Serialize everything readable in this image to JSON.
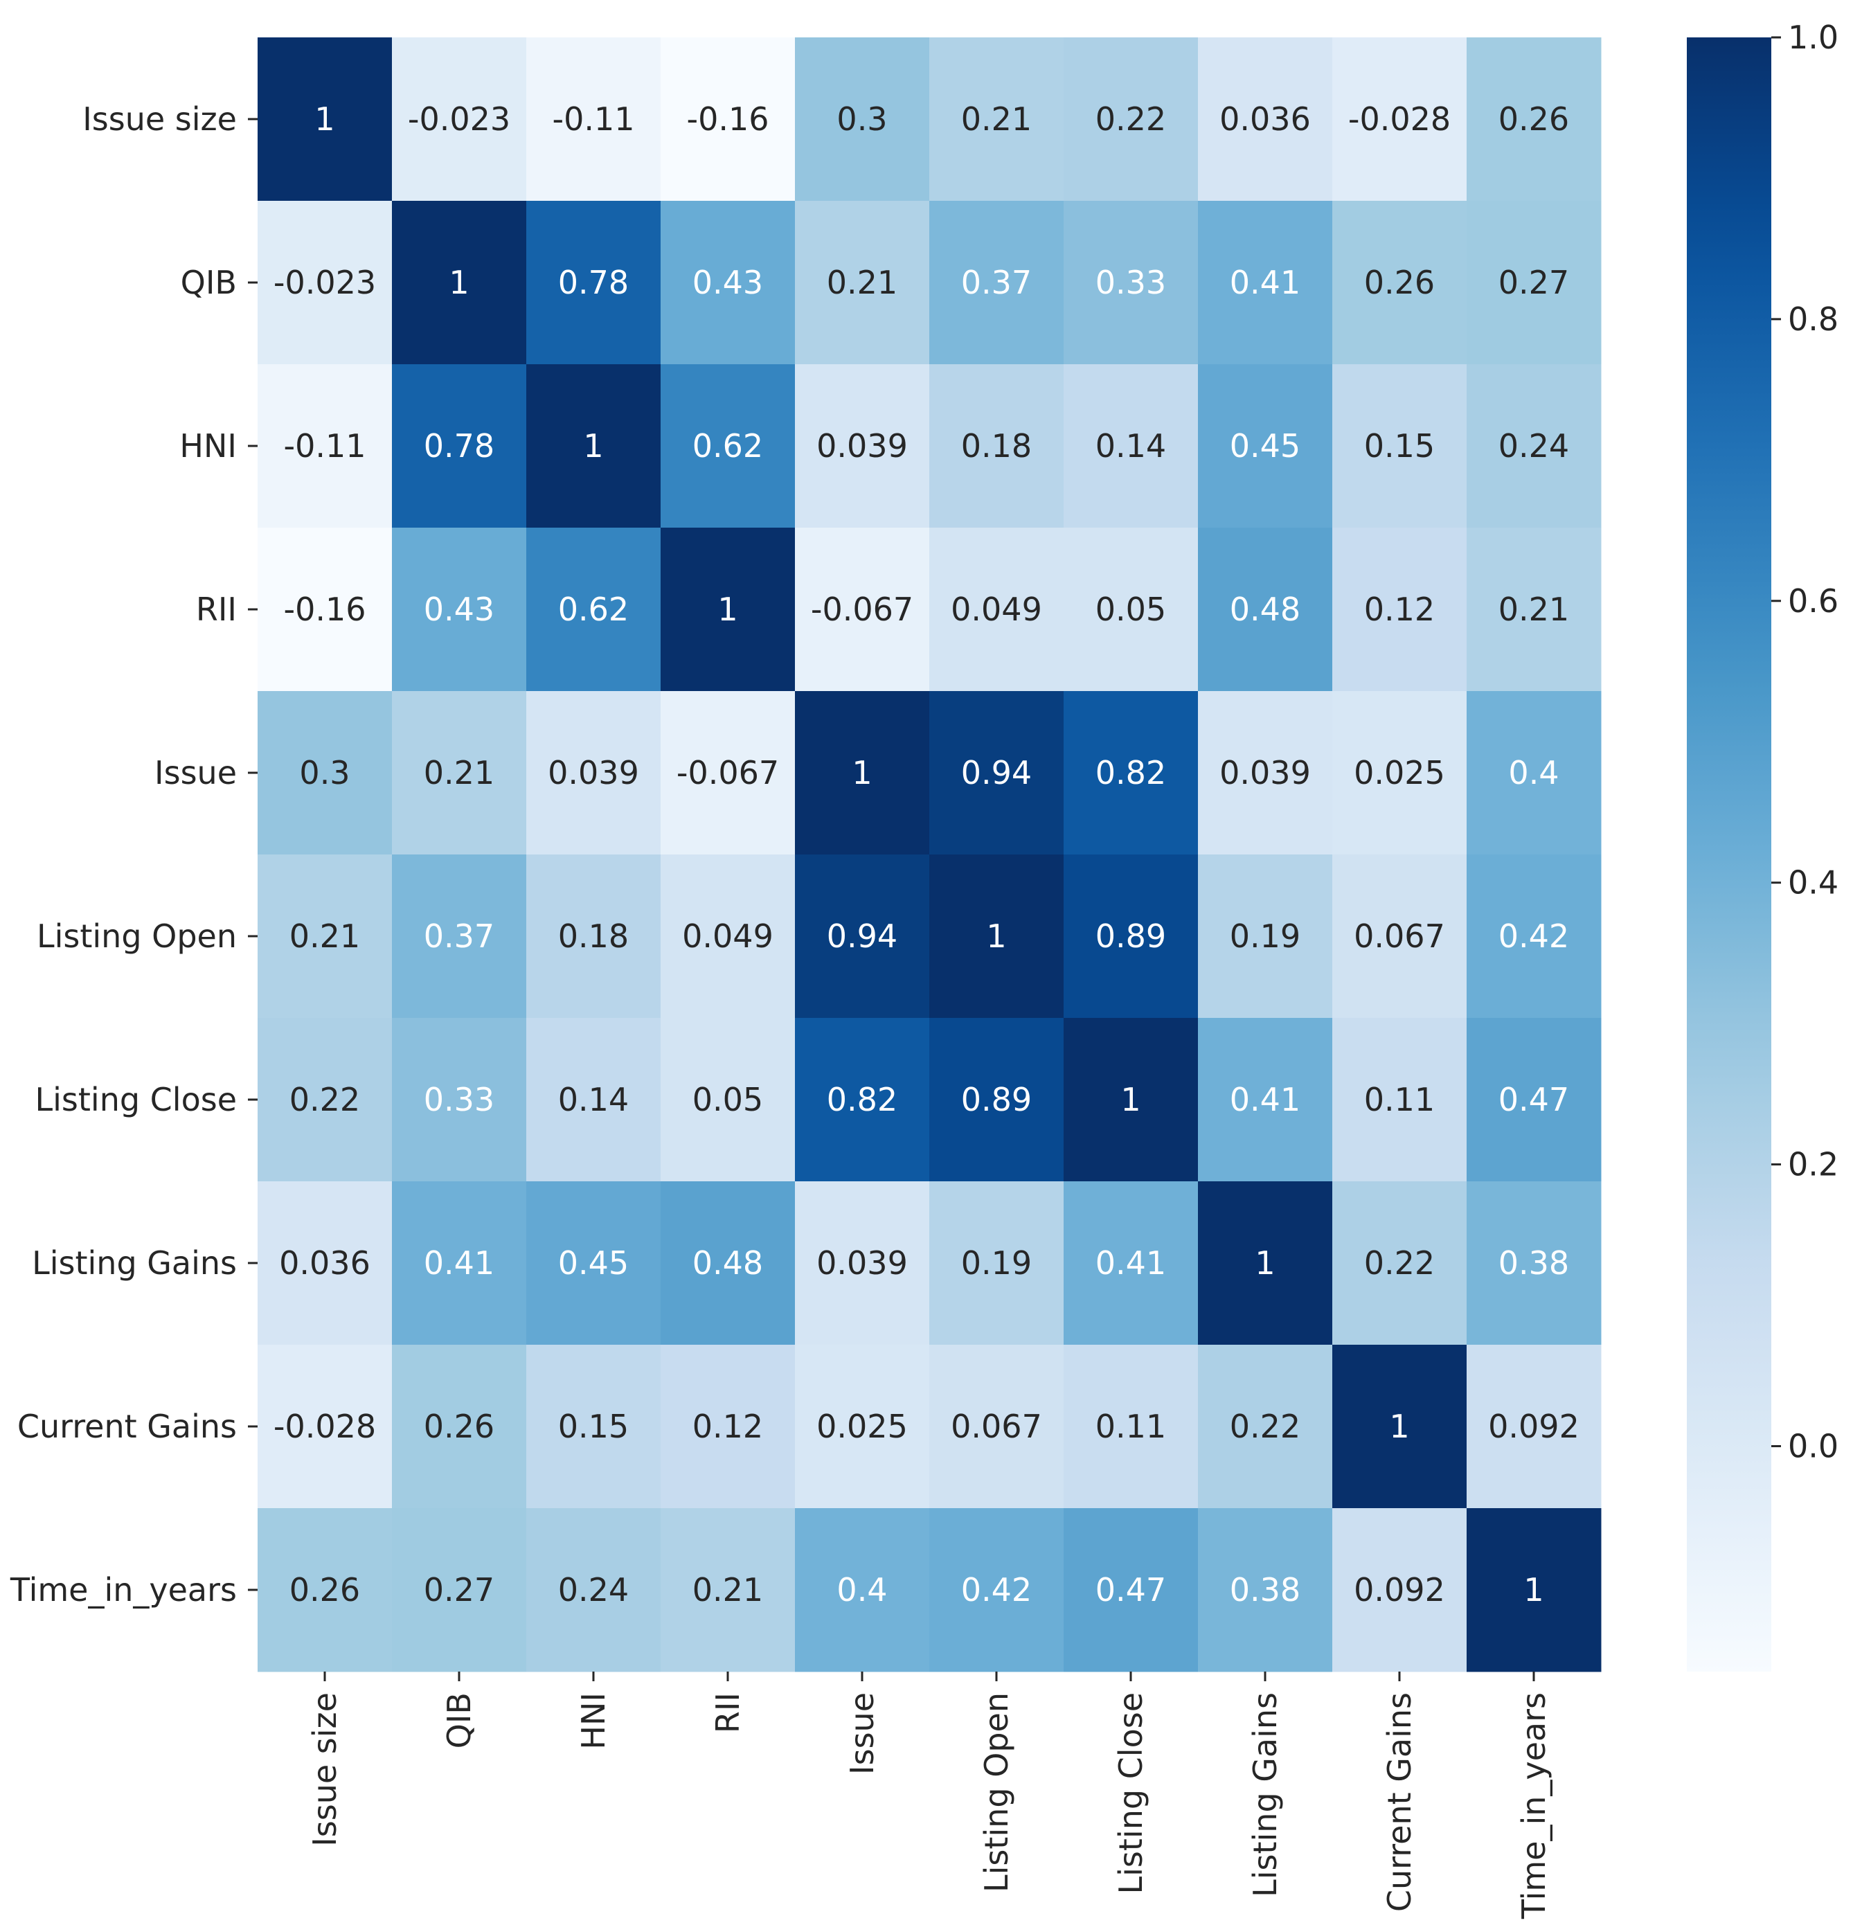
{
  "chart_data": {
    "type": "heatmap",
    "title": "",
    "xlabel": "",
    "ylabel": "",
    "variables": [
      "Issue size",
      "QIB",
      "HNI",
      "RII",
      "Issue",
      "Listing Open",
      "Listing Close",
      "Listing Gains",
      "Current Gains",
      "Time_in_years"
    ],
    "matrix": [
      [
        1,
        -0.023,
        -0.11,
        -0.16,
        0.3,
        0.21,
        0.22,
        0.036,
        -0.028,
        0.26
      ],
      [
        -0.023,
        1,
        0.78,
        0.43,
        0.21,
        0.37,
        0.33,
        0.41,
        0.26,
        0.27
      ],
      [
        -0.11,
        0.78,
        1,
        0.62,
        0.039,
        0.18,
        0.14,
        0.45,
        0.15,
        0.24
      ],
      [
        -0.16,
        0.43,
        0.62,
        1,
        -0.067,
        0.049,
        0.05,
        0.48,
        0.12,
        0.21
      ],
      [
        0.3,
        0.21,
        0.039,
        -0.067,
        1,
        0.94,
        0.82,
        0.039,
        0.025,
        0.4
      ],
      [
        0.21,
        0.37,
        0.18,
        0.049,
        0.94,
        1,
        0.89,
        0.19,
        0.067,
        0.42
      ],
      [
        0.22,
        0.33,
        0.14,
        0.05,
        0.82,
        0.89,
        1,
        0.41,
        0.11,
        0.47
      ],
      [
        0.036,
        0.41,
        0.45,
        0.48,
        0.039,
        0.19,
        0.41,
        1,
        0.22,
        0.38
      ],
      [
        -0.028,
        0.26,
        0.15,
        0.12,
        0.025,
        0.067,
        0.11,
        0.22,
        1,
        0.092
      ],
      [
        0.26,
        0.27,
        0.24,
        0.21,
        0.4,
        0.42,
        0.47,
        0.38,
        0.092,
        1
      ]
    ],
    "annotations": [
      [
        "1",
        "-0.023",
        "-0.11",
        "-0.16",
        "0.3",
        "0.21",
        "0.22",
        "0.036",
        "-0.028",
        "0.26"
      ],
      [
        "-0.023",
        "1",
        "0.78",
        "0.43",
        "0.21",
        "0.37",
        "0.33",
        "0.41",
        "0.26",
        "0.27"
      ],
      [
        "-0.11",
        "0.78",
        "1",
        "0.62",
        "0.039",
        "0.18",
        "0.14",
        "0.45",
        "0.15",
        "0.24"
      ],
      [
        "-0.16",
        "0.43",
        "0.62",
        "1",
        "-0.067",
        "0.049",
        "0.05",
        "0.48",
        "0.12",
        "0.21"
      ],
      [
        "0.3",
        "0.21",
        "0.039",
        "-0.067",
        "1",
        "0.94",
        "0.82",
        "0.039",
        "0.025",
        "0.4"
      ],
      [
        "0.21",
        "0.37",
        "0.18",
        "0.049",
        "0.94",
        "1",
        "0.89",
        "0.19",
        "0.067",
        "0.42"
      ],
      [
        "0.22",
        "0.33",
        "0.14",
        "0.05",
        "0.82",
        "0.89",
        "1",
        "0.41",
        "0.11",
        "0.47"
      ],
      [
        "0.036",
        "0.41",
        "0.45",
        "0.48",
        "0.039",
        "0.19",
        "0.41",
        "1",
        "0.22",
        "0.38"
      ],
      [
        "-0.028",
        "0.26",
        "0.15",
        "0.12",
        "0.025",
        "0.067",
        "0.11",
        "0.22",
        "1",
        "0.092"
      ],
      [
        "0.26",
        "0.27",
        "0.24",
        "0.21",
        "0.4",
        "0.42",
        "0.47",
        "0.38",
        "0.092",
        "1"
      ]
    ],
    "colormap": "Blues",
    "colorbar": {
      "range": [
        -0.16,
        1.0
      ],
      "ticks": [
        0.0,
        0.2,
        0.4,
        0.6,
        0.8,
        1.0
      ],
      "tick_labels": [
        "0.0",
        "0.2",
        "0.4",
        "0.6",
        "0.8",
        "1.0"
      ],
      "position": "right"
    },
    "grid": false
  }
}
